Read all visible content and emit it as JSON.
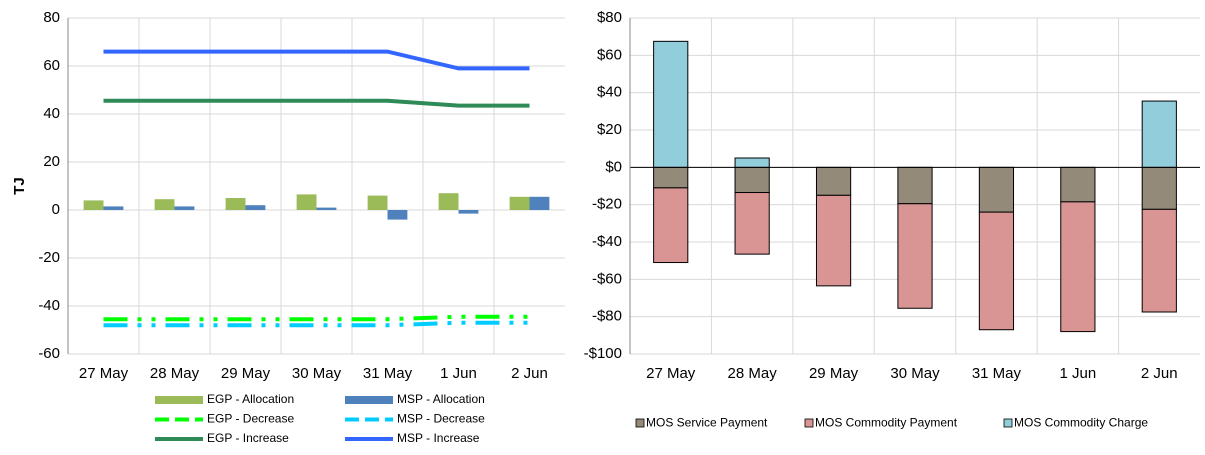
{
  "chart_data": [
    {
      "type": "combo",
      "y_label": "TJ",
      "categories": [
        "27 May",
        "28 May",
        "29 May",
        "30 May",
        "31 May",
        "1 Jun",
        "2 Jun"
      ],
      "ylim": [
        -60,
        80
      ],
      "yticks": [
        -60,
        -40,
        -20,
        0,
        20,
        40,
        60,
        80
      ],
      "grid": true,
      "series": [
        {
          "name": "EGP - Allocation",
          "kind": "bar",
          "color": "#9bbb59",
          "values": [
            4,
            4.5,
            5,
            6.5,
            6,
            7,
            5.5
          ]
        },
        {
          "name": "MSP - Allocation",
          "kind": "bar",
          "color": "#4f81bd",
          "values": [
            1.5,
            1.5,
            2,
            1,
            -4,
            -1.5,
            5.5
          ]
        },
        {
          "name": "EGP - Decrease",
          "kind": "line",
          "dashed": true,
          "color": "#00ff00",
          "values": [
            -45.5,
            -45.5,
            -45.5,
            -45.5,
            -45.5,
            -44.5,
            -44.5
          ]
        },
        {
          "name": "MSP - Decrease",
          "kind": "line",
          "dashed": true,
          "color": "#00ccff",
          "values": [
            -48,
            -48,
            -48,
            -48,
            -48,
            -47,
            -47
          ]
        },
        {
          "name": "EGP - Increase",
          "kind": "line",
          "dashed": false,
          "color": "#2e8b57",
          "values": [
            45.5,
            45.5,
            45.5,
            45.5,
            45.5,
            43.5,
            43.5
          ]
        },
        {
          "name": "MSP - Increase",
          "kind": "line",
          "dashed": false,
          "color": "#3366ff",
          "values": [
            66,
            66,
            66,
            66,
            66,
            59,
            59
          ]
        }
      ]
    },
    {
      "type": "stacked_bar",
      "categories": [
        "27 May",
        "28 May",
        "29 May",
        "30 May",
        "31 May",
        "1 Jun",
        "2 Jun"
      ],
      "ylim": [
        -100,
        80
      ],
      "yticks": [
        {
          "value": -100,
          "label": "-$100"
        },
        {
          "value": -80,
          "label": "-$80"
        },
        {
          "value": -60,
          "label": "-$60"
        },
        {
          "value": -40,
          "label": "-$40"
        },
        {
          "value": -20,
          "label": "-$20"
        },
        {
          "value": 0,
          "label": "$0"
        },
        {
          "value": 20,
          "label": "$20"
        },
        {
          "value": 40,
          "label": "$40"
        },
        {
          "value": 60,
          "label": "$60"
        },
        {
          "value": 80,
          "label": "$80"
        }
      ],
      "grid": true,
      "series": [
        {
          "name": "MOS Service Payment",
          "color": "#948a79",
          "values": [
            -11,
            -13.5,
            -15,
            -19.5,
            -24,
            -18.5,
            -22.5
          ]
        },
        {
          "name": "MOS Commodity Payment",
          "color": "#d99594",
          "values": [
            -40,
            -33,
            -48.5,
            -56,
            -63,
            -69.5,
            -55
          ]
        },
        {
          "name": "MOS Commodity Charge",
          "color": "#92cddc",
          "values": [
            67.5,
            5,
            0,
            0,
            0,
            0,
            35.5
          ]
        }
      ]
    }
  ]
}
